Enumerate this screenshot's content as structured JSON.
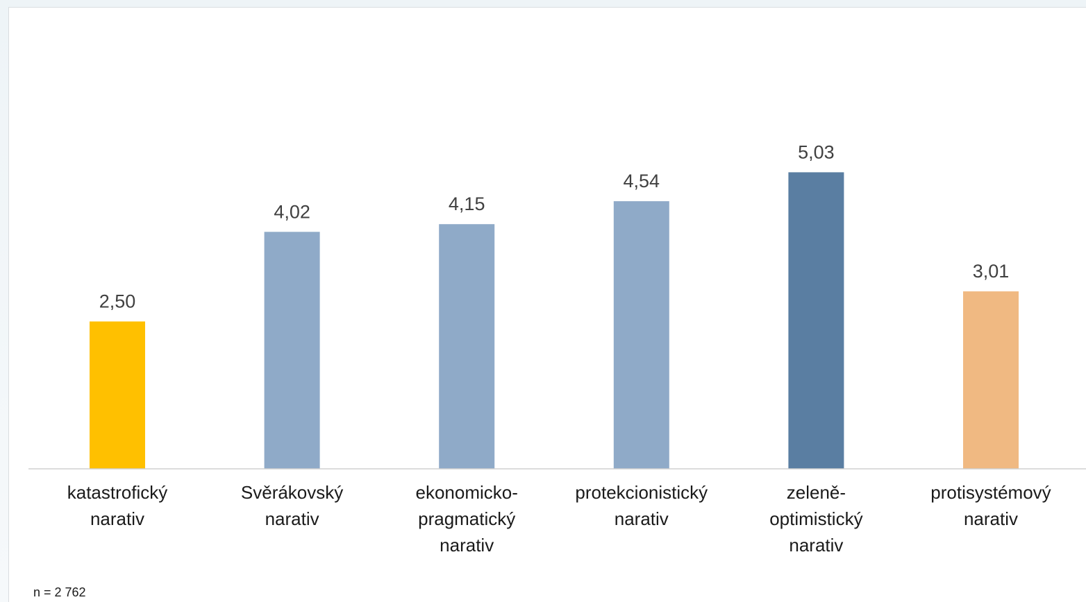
{
  "chart_data": {
    "type": "bar",
    "title": "",
    "xlabel": "",
    "ylabel": "",
    "ylim": [
      0,
      7
    ],
    "grid": false,
    "legend": "none",
    "categories": [
      [
        "katastrofický",
        "narativ"
      ],
      [
        "Svěrákovský",
        "narativ"
      ],
      [
        "ekonomicko-",
        "pragmatický",
        "narativ"
      ],
      [
        "protekcionistický",
        "narativ"
      ],
      [
        "zeleně-",
        "optimistický",
        "narativ"
      ],
      [
        "protisystémový",
        "narativ"
      ]
    ],
    "values": [
      2.5,
      4.02,
      4.15,
      4.54,
      5.03,
      3.01
    ],
    "value_labels": [
      "2,50",
      "4,02",
      "4,15",
      "4,54",
      "5,03",
      "3,01"
    ],
    "colors": [
      "#ffc000",
      "#8faac8",
      "#8faac8",
      "#8faac8",
      "#5a7ea2",
      "#f0b982"
    ]
  },
  "footnote": "n = 2 762"
}
